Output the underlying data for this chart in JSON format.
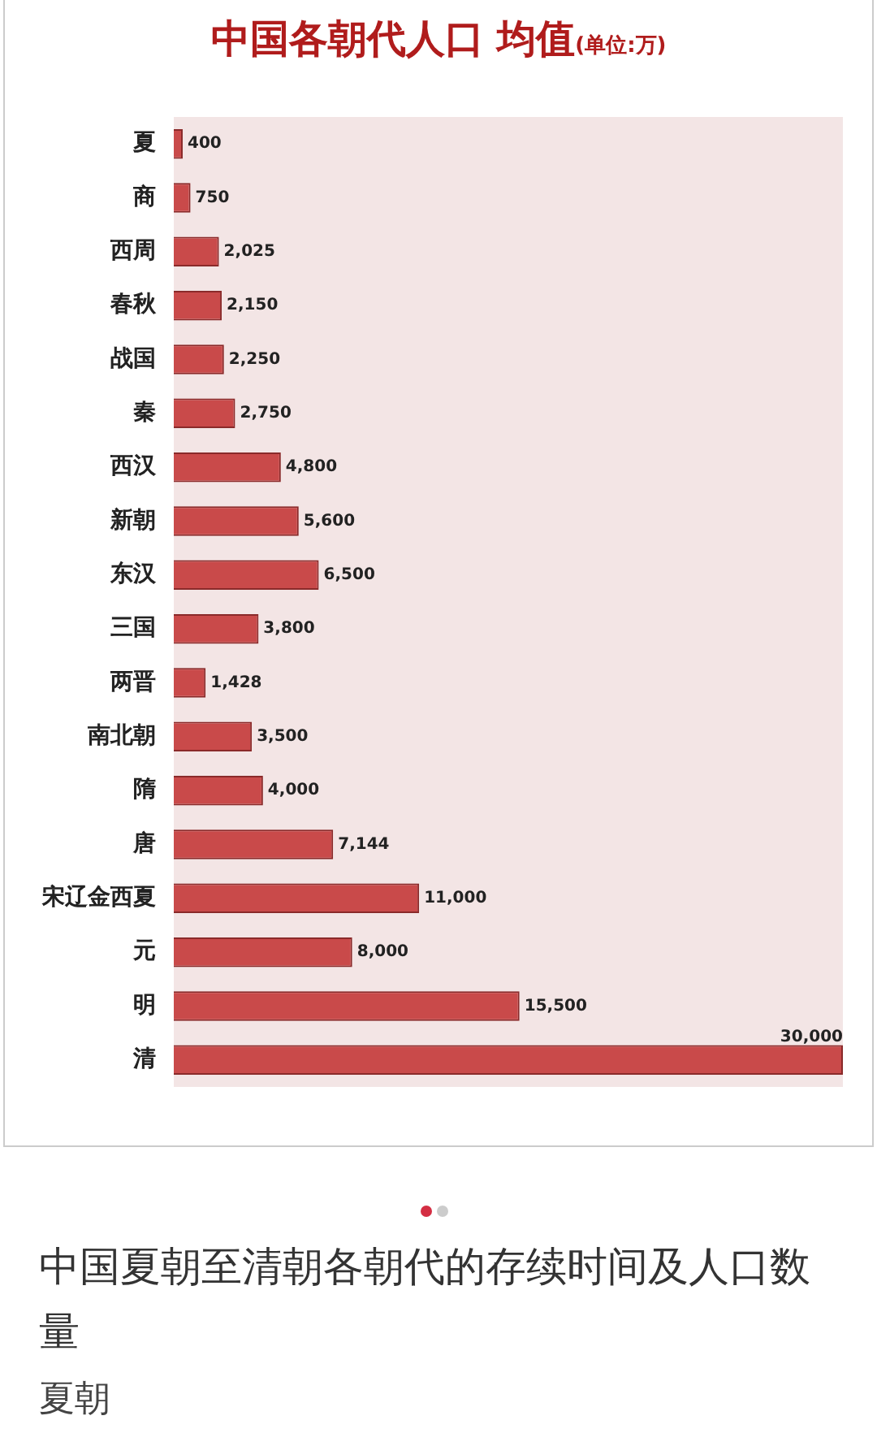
{
  "chart_data": {
    "type": "bar",
    "orientation": "horizontal",
    "title": "中国各朝代人口 均值",
    "subtitle": "(单位:万)",
    "categories": [
      "夏",
      "商",
      "西周",
      "春秋",
      "战国",
      "秦",
      "西汉",
      "新朝",
      "东汉",
      "三国",
      "两晋",
      "南北朝",
      "隋",
      "唐",
      "宋辽金西夏",
      "元",
      "明",
      "清"
    ],
    "values": [
      400,
      750,
      2025,
      2150,
      2250,
      2750,
      4800,
      5600,
      6500,
      3800,
      1428,
      3500,
      4000,
      7144,
      11000,
      8000,
      15500,
      30000
    ],
    "value_labels": [
      "400",
      "750",
      "2,025",
      "2,150",
      "2,250",
      "2,750",
      "4,800",
      "5,600",
      "6,500",
      "3,800",
      "1,428",
      "3,500",
      "4,000",
      "7,144",
      "11,000",
      "8,000",
      "15,500",
      "30,000"
    ],
    "color": "#c94a4a",
    "grid": false,
    "legend": false,
    "annotations": [
      "中国夏朝至清朝各朝代的存续时间及人口数量",
      "夏朝"
    ]
  }
}
